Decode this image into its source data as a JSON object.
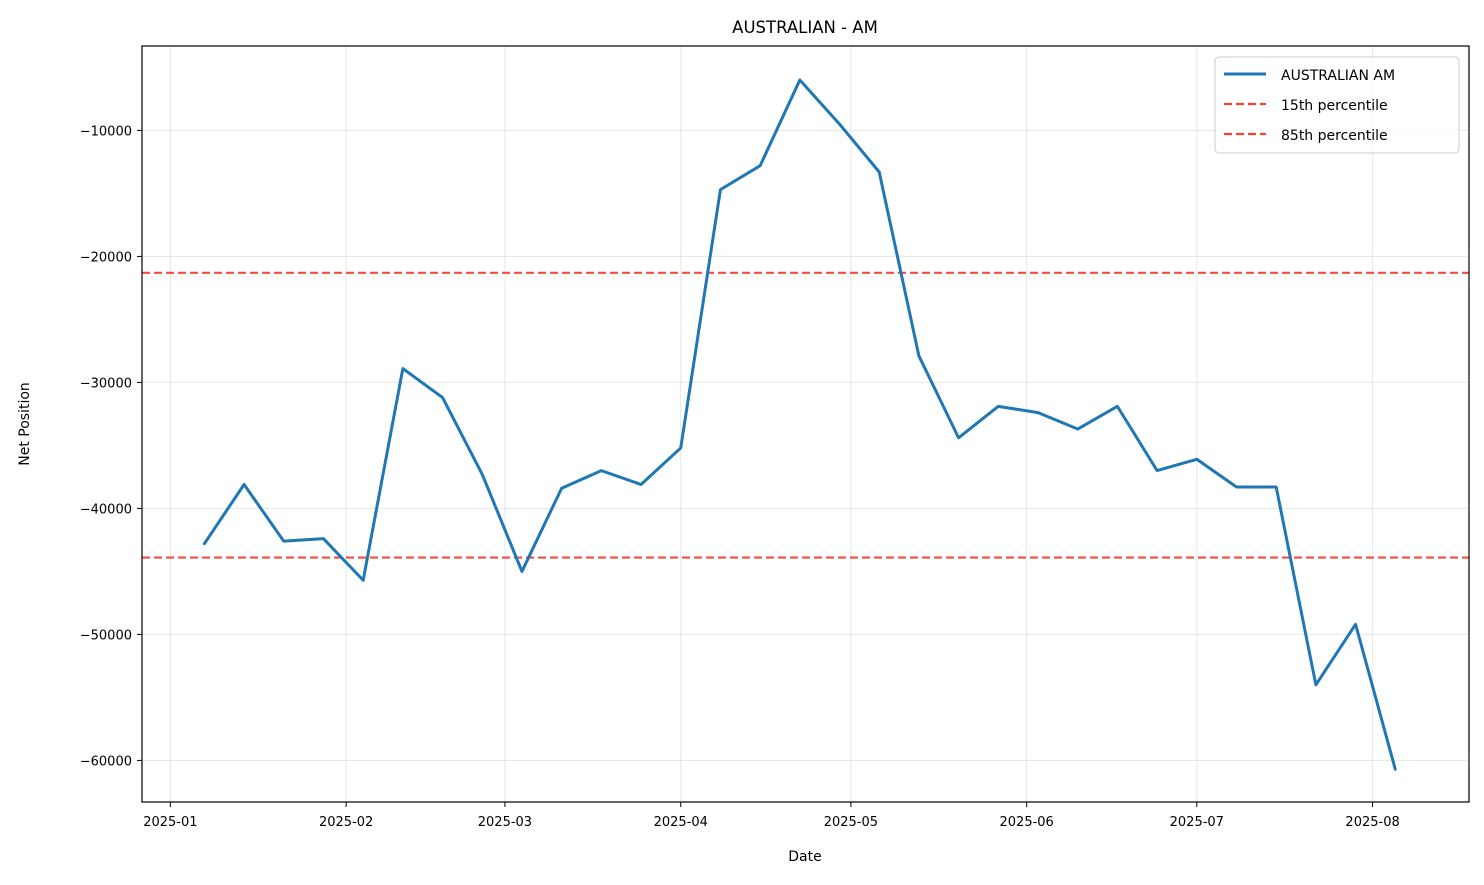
{
  "chart_data": {
    "type": "line",
    "title": "AUSTRALIAN - AM",
    "xlabel": "Date",
    "ylabel": "Net Position",
    "xlim": [
      "2024-12-27",
      "2025-08-18"
    ],
    "ylim": [
      -63300,
      -3300
    ],
    "grid": true,
    "legend_position": "top-right",
    "x_ticks": [
      {
        "date": "2025-01-01",
        "label": "2025-01"
      },
      {
        "date": "2025-02-01",
        "label": "2025-02"
      },
      {
        "date": "2025-03-01",
        "label": "2025-03"
      },
      {
        "date": "2025-04-01",
        "label": "2025-04"
      },
      {
        "date": "2025-05-01",
        "label": "2025-05"
      },
      {
        "date": "2025-06-01",
        "label": "2025-06"
      },
      {
        "date": "2025-07-01",
        "label": "2025-07"
      },
      {
        "date": "2025-08-01",
        "label": "2025-08"
      }
    ],
    "y_ticks": [
      {
        "value": -10000,
        "label": "−10000"
      },
      {
        "value": -20000,
        "label": "−20000"
      },
      {
        "value": -30000,
        "label": "−30000"
      },
      {
        "value": -40000,
        "label": "−40000"
      },
      {
        "value": -50000,
        "label": "−50000"
      },
      {
        "value": -60000,
        "label": "−60000"
      }
    ],
    "series": [
      {
        "name": "AUSTRALIAN AM",
        "color": "#1f77b4",
        "style": "solid",
        "x": [
          "2025-01-07",
          "2025-01-14",
          "2025-01-21",
          "2025-01-28",
          "2025-02-04",
          "2025-02-11",
          "2025-02-18",
          "2025-02-25",
          "2025-03-04",
          "2025-03-11",
          "2025-03-18",
          "2025-03-25",
          "2025-04-01",
          "2025-04-08",
          "2025-04-15",
          "2025-04-22",
          "2025-04-29",
          "2025-05-06",
          "2025-05-13",
          "2025-05-20",
          "2025-05-27",
          "2025-06-03",
          "2025-06-10",
          "2025-06-17",
          "2025-06-24",
          "2025-07-01",
          "2025-07-08",
          "2025-07-15",
          "2025-07-22",
          "2025-07-29",
          "2025-08-05"
        ],
        "values": [
          -42800,
          -38100,
          -42600,
          -42400,
          -45700,
          -28900,
          -31200,
          -37300,
          -45000,
          -38400,
          -37000,
          -38100,
          -35200,
          -14700,
          -12800,
          -6000,
          -9500,
          -13300,
          -27900,
          -34400,
          -31900,
          -32400,
          -33700,
          -31900,
          -37000,
          -36100,
          -38300,
          -38300,
          -54000,
          -49200,
          -60700
        ]
      }
    ],
    "reference_lines": [
      {
        "name": "15th percentile",
        "value": -43900,
        "color": "#f44336",
        "style": "dashed"
      },
      {
        "name": "85th percentile",
        "value": -21300,
        "color": "#f44336",
        "style": "dashed"
      }
    ]
  }
}
